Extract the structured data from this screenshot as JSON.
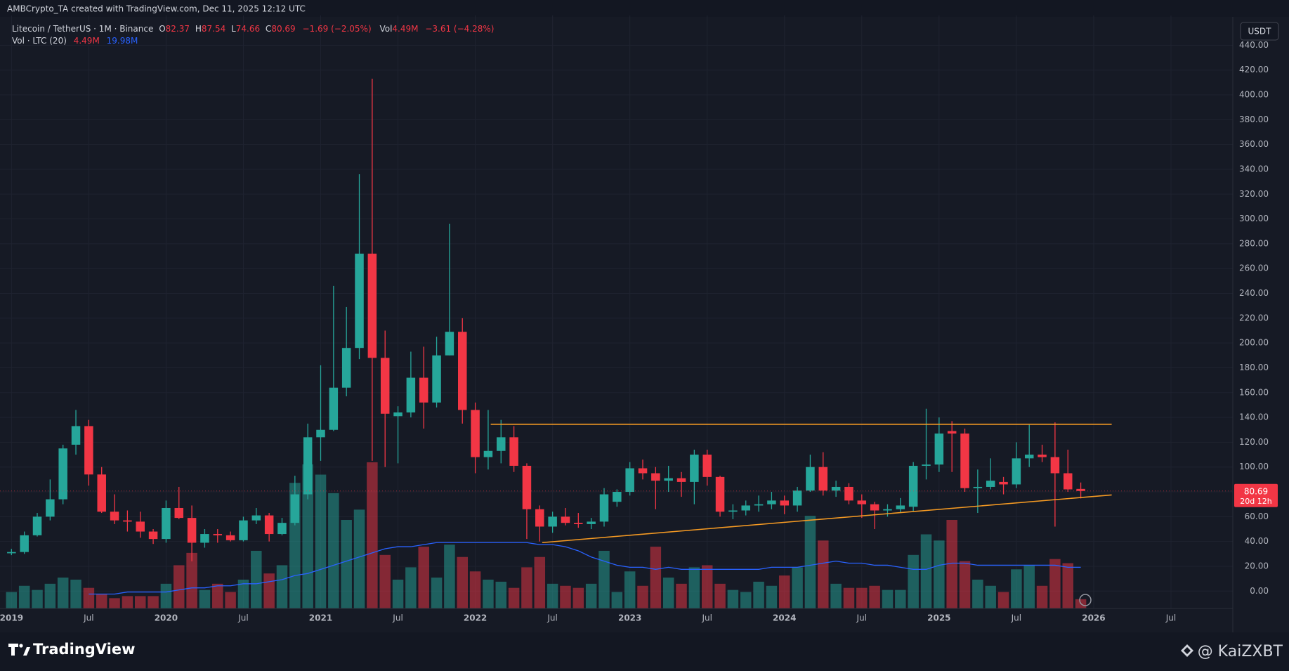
{
  "header": "AMBCrypto_TA created with TradingView.com, Dec 11, 2025 12:12 UTC",
  "legend": {
    "symbol": "Litecoin / TetherUS · 1M · Binance",
    "open_label": "O",
    "open": "82.37",
    "high_label": "H",
    "high": "87.54",
    "low_label": "L",
    "low": "74.66",
    "close_label": "C",
    "close": "80.69",
    "change": "−1.69 (−2.05%)",
    "vol_label": "Vol",
    "vol": "4.49M",
    "vol_change": "−3.61 (−4.28%)",
    "vol_indicator": "Vol · LTC (20)",
    "vol_value": "4.49M",
    "vol_ma_value": "19.98M"
  },
  "currency_button": "USDT",
  "countdown": "20d 12h",
  "footer": {
    "brand": "TradingView",
    "watermark": "@ KaiZXBT"
  },
  "chart_data": {
    "type": "candlestick",
    "open": [
      30.5,
      31.5,
      45,
      60,
      74,
      118,
      133,
      94,
      64,
      57,
      56,
      48,
      42,
      67,
      59,
      39,
      46,
      45,
      41,
      57,
      61,
      46,
      55,
      78,
      124,
      130,
      164,
      196,
      272,
      188,
      141,
      144,
      172,
      152,
      190,
      209,
      146,
      108,
      113,
      124,
      101,
      66,
      52,
      60,
      55,
      54,
      56,
      72,
      80,
      99,
      95,
      89,
      91,
      88,
      110,
      92,
      64,
      65,
      69,
      70,
      73,
      69,
      81,
      100,
      81,
      84,
      73,
      70,
      65,
      66,
      68,
      101,
      102,
      129,
      127,
      83,
      84,
      88,
      86,
      107,
      110,
      108,
      95,
      82.37
    ],
    "high": [
      34,
      48,
      63,
      90,
      118,
      146,
      138,
      100,
      78,
      65,
      64,
      50,
      73,
      84,
      69,
      50,
      50,
      48,
      60,
      67,
      63,
      59,
      93,
      135,
      182,
      246,
      229,
      336,
      413,
      210,
      149,
      193,
      197,
      205,
      296,
      220,
      152,
      146,
      138,
      133,
      103,
      69,
      64,
      67,
      63,
      59,
      83,
      82,
      104,
      106,
      100,
      101,
      96,
      114,
      114,
      93,
      70,
      73,
      77,
      80,
      77,
      84,
      110,
      112,
      89,
      87,
      78,
      72,
      70,
      75,
      104,
      147,
      140,
      137,
      131,
      98,
      107,
      92,
      120,
      134,
      118,
      136,
      114,
      87.54
    ],
    "low": [
      29,
      30,
      44,
      57,
      70,
      110,
      85,
      63,
      54,
      48,
      43,
      38,
      39,
      58,
      24,
      35,
      39,
      40,
      40,
      54,
      40,
      45,
      53,
      74,
      105,
      129,
      157,
      187,
      105,
      100,
      103,
      140,
      131,
      148,
      190,
      135,
      95,
      98,
      103,
      96,
      42,
      40,
      47,
      53,
      51,
      50,
      52,
      68,
      77,
      90,
      66,
      80,
      76,
      70,
      85,
      60,
      58,
      61,
      64,
      66,
      62,
      64,
      80,
      77,
      76,
      70,
      59,
      50,
      60,
      63,
      64,
      90,
      96,
      96,
      80,
      63,
      82,
      78,
      83,
      100,
      104,
      52,
      80,
      74.66
    ],
    "close": [
      31.5,
      45,
      60,
      74,
      115,
      133,
      94,
      64,
      57,
      56,
      48,
      42,
      67,
      59,
      39,
      46,
      45,
      41,
      57,
      61,
      46,
      55,
      78,
      124,
      130,
      164,
      196,
      272,
      188,
      143,
      144,
      172,
      152,
      190,
      209,
      146,
      108,
      113,
      124,
      101,
      66,
      52,
      60,
      55,
      54,
      56,
      78,
      80,
      99,
      95,
      89,
      91,
      88,
      110,
      92,
      64,
      65,
      69,
      70,
      73,
      69,
      81,
      100,
      81,
      84,
      73,
      70,
      65,
      66,
      69,
      101,
      102,
      127,
      127,
      83,
      84,
      89,
      86,
      107,
      110,
      108,
      95,
      82,
      80.69
    ],
    "volume": [
      8,
      11,
      9,
      12,
      15,
      14,
      10,
      7,
      5,
      6,
      6,
      6,
      12,
      21,
      27,
      9,
      12,
      8,
      14,
      28,
      17,
      21,
      61,
      70,
      65,
      56,
      43,
      48,
      71,
      26,
      14,
      20,
      30,
      15,
      31,
      25,
      18,
      14,
      13,
      10,
      20,
      25,
      12,
      11,
      10,
      12,
      28,
      8,
      18,
      11,
      30,
      15,
      12,
      20,
      21,
      12,
      9,
      8,
      13,
      11,
      16,
      20,
      45,
      33,
      12,
      10,
      10,
      11,
      9,
      9,
      26,
      36,
      33,
      43,
      23,
      14,
      11,
      8,
      19,
      21,
      11,
      24,
      22,
      4.49
    ],
    "volume_ma": [
      null,
      null,
      null,
      null,
      null,
      null,
      7,
      7,
      7,
      8,
      8,
      8,
      8,
      9,
      10,
      10,
      11,
      11,
      12,
      12,
      13,
      14,
      16,
      17,
      19,
      21,
      23,
      25,
      27,
      29,
      30,
      30,
      31,
      32,
      32,
      32,
      32,
      32,
      32,
      32,
      32,
      31,
      31,
      30,
      28,
      25,
      23,
      21,
      20,
      20,
      19,
      20,
      19,
      19,
      19,
      19,
      19,
      19,
      19,
      20,
      20,
      20,
      21,
      22,
      23,
      22,
      22,
      21,
      21,
      20,
      19,
      19,
      21,
      22,
      22,
      21,
      21,
      21,
      21,
      21,
      21,
      21,
      20,
      19.98
    ],
    "up_color": "#26a69a",
    "down_color": "#f23645",
    "ma_color": "#2962ff",
    "xlim": [
      -0.4,
      94.8
    ],
    "ylim": [
      -14,
      464
    ],
    "volume_ylim": [
      0,
      288
    ],
    "xticks": [
      {
        "value": 0,
        "label": "2019"
      },
      {
        "value": 6,
        "label": "Jul"
      },
      {
        "value": 12,
        "label": "2020"
      },
      {
        "value": 18,
        "label": "Jul"
      },
      {
        "value": 24,
        "label": "2021"
      },
      {
        "value": 30,
        "label": "Jul"
      },
      {
        "value": 36,
        "label": "2022"
      },
      {
        "value": 42,
        "label": "Jul"
      },
      {
        "value": 48,
        "label": "2023"
      },
      {
        "value": 54,
        "label": "Jul"
      },
      {
        "value": 60,
        "label": "2024"
      },
      {
        "value": 66,
        "label": "Jul"
      },
      {
        "value": 72,
        "label": "2025"
      },
      {
        "value": 78,
        "label": "Jul"
      },
      {
        "value": 84,
        "label": "2026"
      },
      {
        "value": 90,
        "label": "Jul"
      }
    ],
    "yticks": [
      {
        "value": 0,
        "label": "0.00"
      },
      {
        "value": 20,
        "label": "20.00"
      },
      {
        "value": 40,
        "label": "40.00"
      },
      {
        "value": 60,
        "label": "60.00"
      },
      {
        "value": 80,
        "label": "80.00"
      },
      {
        "value": 100,
        "label": "100.00"
      },
      {
        "value": 120,
        "label": "120.00"
      },
      {
        "value": 140,
        "label": "140.00"
      },
      {
        "value": 160,
        "label": "160.00"
      },
      {
        "value": 180,
        "label": "180.00"
      },
      {
        "value": 200,
        "label": "200.00"
      },
      {
        "value": 220,
        "label": "220.00"
      },
      {
        "value": 240,
        "label": "240.00"
      },
      {
        "value": 260,
        "label": "260.00"
      },
      {
        "value": 280,
        "label": "280.00"
      },
      {
        "value": 300,
        "label": "300.00"
      },
      {
        "value": 320,
        "label": "320.00"
      },
      {
        "value": 340,
        "label": "340.00"
      },
      {
        "value": 360,
        "label": "360.00"
      },
      {
        "value": 380,
        "label": "380.00"
      },
      {
        "value": 400,
        "label": "400.00"
      },
      {
        "value": 420,
        "label": "420.00"
      },
      {
        "value": 440,
        "label": "440.00"
      }
    ],
    "grid": true,
    "lines": [
      {
        "color": "#f59a23",
        "points": [
          [
            37.2,
            134.5
          ],
          [
            85.4,
            134.5
          ]
        ]
      },
      {
        "color": "#f59a23",
        "points": [
          [
            41.2,
            39.1
          ],
          [
            85.4,
            77.5
          ]
        ]
      }
    ]
  }
}
